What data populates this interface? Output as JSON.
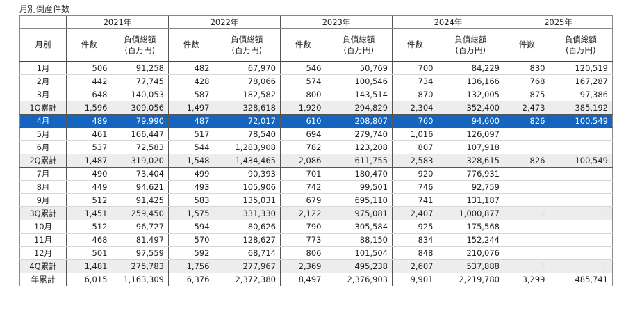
{
  "title": "月別倒産件数",
  "years": [
    "2021年",
    "2022年",
    "2023年",
    "2024年",
    "2025年"
  ],
  "header": {
    "month": "月別",
    "count": "件数",
    "debt_line1": "負債総額",
    "debt_line2": "(百万円)"
  },
  "rows": [
    {
      "label": "1月",
      "type": "month",
      "cells": [
        "506",
        "91,258",
        "482",
        "67,970",
        "546",
        "50,769",
        "700",
        "84,229",
        "830",
        "120,519"
      ]
    },
    {
      "label": "2月",
      "type": "month",
      "cells": [
        "442",
        "77,745",
        "428",
        "78,066",
        "574",
        "100,546",
        "734",
        "136,166",
        "768",
        "167,287"
      ]
    },
    {
      "label": "3月",
      "type": "month",
      "cells": [
        "648",
        "140,053",
        "587",
        "182,582",
        "800",
        "143,514",
        "870",
        "132,005",
        "875",
        "97,386"
      ]
    },
    {
      "label": "1Q累計",
      "type": "sub",
      "cells": [
        "1,596",
        "309,056",
        "1,497",
        "328,618",
        "1,920",
        "294,829",
        "2,304",
        "352,400",
        "2,473",
        "385,192"
      ]
    },
    {
      "label": "4月",
      "type": "hl",
      "cells": [
        "489",
        "79,990",
        "487",
        "72,017",
        "610",
        "208,807",
        "760",
        "94,600",
        "826",
        "100,549"
      ]
    },
    {
      "label": "5月",
      "type": "month",
      "cells": [
        "461",
        "166,447",
        "517",
        "78,540",
        "694",
        "279,740",
        "1,016",
        "126,097",
        "",
        ""
      ]
    },
    {
      "label": "6月",
      "type": "month",
      "cells": [
        "537",
        "72,583",
        "544",
        "1,283,908",
        "782",
        "123,208",
        "807",
        "107,918",
        "",
        ""
      ]
    },
    {
      "label": "2Q累計",
      "type": "sub",
      "cells": [
        "1,487",
        "319,020",
        "1,548",
        "1,434,465",
        "2,086",
        "611,755",
        "2,583",
        "328,615",
        "826",
        "100,549"
      ]
    },
    {
      "label": "7月",
      "type": "month",
      "cells": [
        "490",
        "73,404",
        "499",
        "90,393",
        "701",
        "180,470",
        "920",
        "776,931",
        "",
        ""
      ]
    },
    {
      "label": "8月",
      "type": "month",
      "cells": [
        "449",
        "94,621",
        "493",
        "105,906",
        "742",
        "99,501",
        "746",
        "92,759",
        "",
        ""
      ]
    },
    {
      "label": "9月",
      "type": "month",
      "cells": [
        "512",
        "91,425",
        "583",
        "135,031",
        "679",
        "695,110",
        "741",
        "131,187",
        "",
        ""
      ]
    },
    {
      "label": "3Q累計",
      "type": "sub",
      "cells": [
        "1,451",
        "259,450",
        "1,575",
        "331,330",
        "2,122",
        "975,081",
        "2,407",
        "1,000,877",
        "0",
        "0"
      ]
    },
    {
      "label": "10月",
      "type": "month",
      "cells": [
        "512",
        "96,727",
        "594",
        "80,626",
        "790",
        "305,584",
        "925",
        "175,568",
        "",
        ""
      ]
    },
    {
      "label": "11月",
      "type": "month",
      "cells": [
        "468",
        "81,497",
        "570",
        "128,627",
        "773",
        "88,150",
        "834",
        "152,244",
        "",
        ""
      ]
    },
    {
      "label": "12月",
      "type": "month",
      "cells": [
        "501",
        "97,559",
        "592",
        "68,714",
        "806",
        "101,504",
        "848",
        "210,076",
        "",
        ""
      ]
    },
    {
      "label": "4Q累計",
      "type": "sub",
      "cells": [
        "1,481",
        "275,783",
        "1,756",
        "277,967",
        "2,369",
        "495,238",
        "2,607",
        "537,888",
        "0",
        "0"
      ]
    },
    {
      "label": "年累計",
      "type": "total",
      "cells": [
        "6,015",
        "1,163,309",
        "6,376",
        "2,372,380",
        "8,497",
        "2,376,903",
        "9,901",
        "2,219,780",
        "3,299",
        "485,741"
      ]
    }
  ],
  "faint_zero_rows": [
    "3Q累計",
    "4Q累計"
  ],
  "highlight_color": "#1565c0",
  "subtotal_bg": "#ededed"
}
